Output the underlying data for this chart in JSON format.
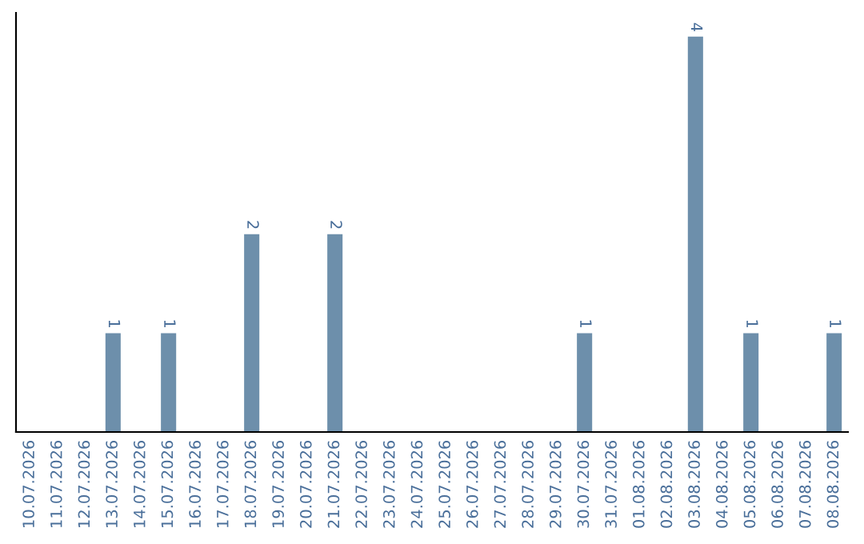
{
  "chart_data": {
    "type": "bar",
    "categories": [
      "10.07.2026",
      "11.07.2026",
      "12.07.2026",
      "13.07.2026",
      "14.07.2026",
      "15.07.2026",
      "16.07.2026",
      "17.07.2026",
      "18.07.2026",
      "19.07.2026",
      "20.07.2026",
      "21.07.2026",
      "22.07.2026",
      "23.07.2026",
      "24.07.2026",
      "25.07.2026",
      "26.07.2026",
      "27.07.2026",
      "28.07.2026",
      "29.07.2026",
      "30.07.2026",
      "31.07.2026",
      "01.08.2026",
      "02.08.2026",
      "03.08.2026",
      "04.08.2026",
      "05.08.2026",
      "06.08.2026",
      "07.08.2026",
      "08.08.2026"
    ],
    "values": [
      0,
      0,
      0,
      1,
      0,
      1,
      0,
      0,
      2,
      0,
      0,
      2,
      0,
      0,
      0,
      0,
      0,
      0,
      0,
      0,
      1,
      0,
      0,
      0,
      4,
      0,
      1,
      0,
      0,
      1
    ],
    "value_labels": [
      null,
      null,
      null,
      "1",
      null,
      "1",
      null,
      null,
      "2",
      null,
      null,
      "2",
      null,
      null,
      null,
      null,
      null,
      null,
      null,
      null,
      "1",
      null,
      null,
      null,
      "4",
      null,
      "1",
      null,
      null,
      "1"
    ],
    "color": "#6d8fab",
    "tick_labels": "x",
    "grid": false,
    "legend": false
  }
}
